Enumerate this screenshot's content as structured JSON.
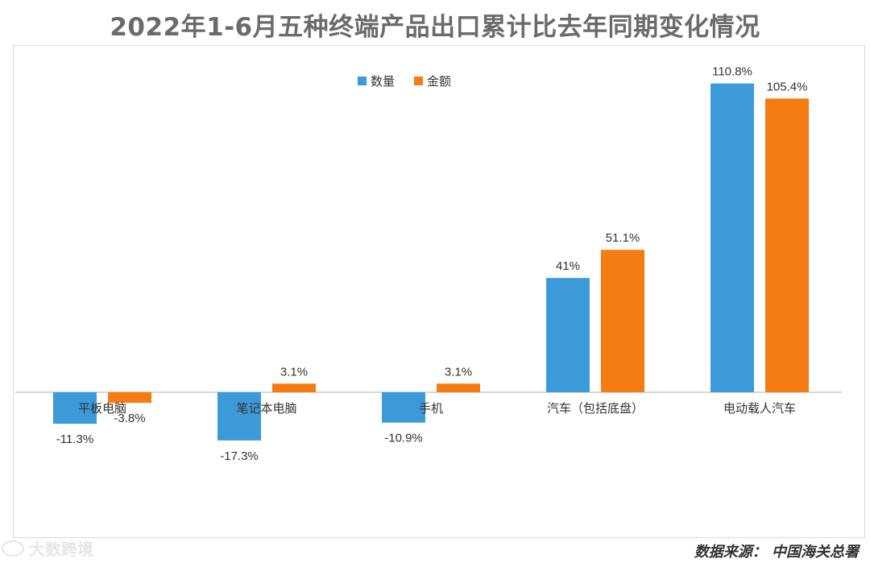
{
  "title": "2022年1-6月五种终端产品出口累计比去年同期变化情况",
  "source": "数据来源： 中国海关总署",
  "watermark": "大数跨境",
  "colors": {
    "quantity": "#3d9ad8",
    "amount": "#f57c13",
    "label": "#333333",
    "axis": "#bfbfbf"
  },
  "chart_data": {
    "type": "bar",
    "categories": [
      "平板电脑",
      "笔记本电脑",
      "手机",
      "汽车（包括底盘）",
      "电动载人汽车"
    ],
    "series": [
      {
        "name": "数量",
        "values": [
          -11.3,
          -17.3,
          -10.9,
          41,
          110.8
        ],
        "labels": [
          "-11.3%",
          "-17.3%",
          "-10.9%",
          "41%",
          "110.8%"
        ]
      },
      {
        "name": "金额",
        "values": [
          -3.8,
          3.1,
          3.1,
          51.1,
          105.4
        ],
        "labels": [
          "-3.8%",
          "3.1%",
          "3.1%",
          "51.1%",
          "105.4%"
        ]
      }
    ],
    "ylim": [
      -20,
      115
    ],
    "legend": "top-center",
    "grid": false
  }
}
